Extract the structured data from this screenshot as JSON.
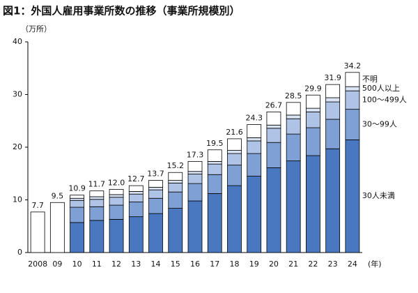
{
  "chart_data": {
    "type": "stacked_bar",
    "title": "図1：外国人雇用事業所数の推移（事業所規模別）",
    "y_label": "（万所）",
    "x_label": "(年)",
    "categories": [
      "2008",
      "09",
      "10",
      "11",
      "12",
      "13",
      "14",
      "15",
      "16",
      "17",
      "18",
      "19",
      "20",
      "21",
      "22",
      "23",
      "24"
    ],
    "series": [
      {
        "name": "30人未満",
        "color": "#4a78c0",
        "values": [
          null,
          null,
          5.7,
          6.1,
          6.3,
          6.8,
          7.4,
          8.4,
          9.8,
          11.2,
          12.7,
          14.5,
          16.1,
          17.4,
          18.4,
          19.7,
          21.4
        ]
      },
      {
        "name": "30～99人",
        "color": "#7fa0d4",
        "values": [
          null,
          null,
          2.9,
          2.6,
          2.7,
          2.8,
          2.9,
          3.1,
          3.3,
          3.6,
          3.9,
          4.3,
          4.8,
          5.1,
          5.3,
          5.6,
          5.8
        ]
      },
      {
        "name": "100～499人",
        "color": "#aec3e6",
        "values": [
          null,
          null,
          1.3,
          1.4,
          1.5,
          1.5,
          1.6,
          1.7,
          1.8,
          2.0,
          2.2,
          2.4,
          2.7,
          2.9,
          3.0,
          3.3,
          3.5
        ]
      },
      {
        "name": "500人以上",
        "color": "#d8e3f3",
        "values": [
          null,
          null,
          0.4,
          0.5,
          0.5,
          0.5,
          0.5,
          0.5,
          0.5,
          0.5,
          0.6,
          0.6,
          0.6,
          0.7,
          0.7,
          0.8,
          0.8
        ]
      },
      {
        "name": "不明",
        "color": "#ffffff",
        "values": [
          null,
          null,
          0.6,
          1.1,
          1.0,
          1.1,
          1.3,
          1.5,
          1.9,
          2.2,
          2.2,
          2.5,
          2.5,
          2.4,
          2.5,
          2.5,
          2.7
        ]
      }
    ],
    "totals": {
      "color": "#ffffff",
      "values": [
        7.7,
        9.5,
        10.9,
        11.7,
        12,
        12.7,
        13.7,
        15.2,
        17.3,
        19.5,
        21.6,
        24.3,
        26.7,
        28.5,
        29.9,
        31.9,
        34.2
      ],
      "value_labels": [
        "7.7",
        "9.5",
        "10.9",
        "11.7",
        "12.0",
        "12.7",
        "13.7",
        "15.2",
        "17.3",
        "19.5",
        "21.6",
        "24.3",
        "26.7",
        "28.5",
        "29.9",
        "31.9",
        "34.2"
      ]
    },
    "ylim": [
      0,
      40
    ],
    "yticks": [
      0,
      10,
      20,
      30,
      40
    ]
  }
}
